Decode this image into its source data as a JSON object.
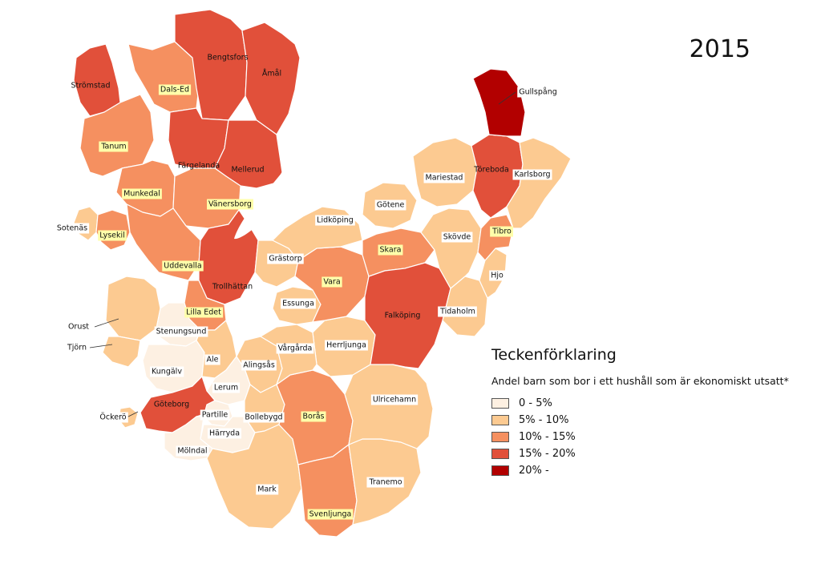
{
  "year": "2015",
  "legend": {
    "title": "Teckenförklaring",
    "subtitle": "Andel barn som bor i ett hushåll som är ekonomiskt utsatt*",
    "classes": [
      {
        "label": "0 - 5%",
        "color": "#fdf0e2"
      },
      {
        "label": "5% - 10%",
        "color": "#fcca91"
      },
      {
        "label": "10% - 15%",
        "color": "#f59060"
      },
      {
        "label": "15% - 20%",
        "color": "#e1503a"
      },
      {
        "label": "20% -",
        "color": "#b20000"
      }
    ]
  },
  "municipalities": [
    {
      "name": "Strömstad",
      "class": 3,
      "label_style": "plain"
    },
    {
      "name": "Dals-Ed",
      "class": 2,
      "label_style": "yellow"
    },
    {
      "name": "Bengtsfors",
      "class": 3,
      "label_style": "plain"
    },
    {
      "name": "Åmål",
      "class": 3,
      "label_style": "plain"
    },
    {
      "name": "Tanum",
      "class": 2,
      "label_style": "yellow"
    },
    {
      "name": "Färgelanda",
      "class": 3,
      "label_style": "plain"
    },
    {
      "name": "Mellerud",
      "class": 3,
      "label_style": "plain"
    },
    {
      "name": "Munkedal",
      "class": 2,
      "label_style": "yellow"
    },
    {
      "name": "Vänersborg",
      "class": 2,
      "label_style": "yellow"
    },
    {
      "name": "Sotenäs",
      "class": 1,
      "label_style": "white"
    },
    {
      "name": "Lysekil",
      "class": 2,
      "label_style": "yellow"
    },
    {
      "name": "Uddevalla",
      "class": 2,
      "label_style": "yellow"
    },
    {
      "name": "Trollhättan",
      "class": 3,
      "label_style": "plain"
    },
    {
      "name": "Lilla Edet",
      "class": 2,
      "label_style": "yellow"
    },
    {
      "name": "Orust",
      "class": 1,
      "label_style": "white"
    },
    {
      "name": "Stenungsund",
      "class": 0,
      "label_style": "white"
    },
    {
      "name": "Tjörn",
      "class": 1,
      "label_style": "white"
    },
    {
      "name": "Kungälv",
      "class": 0,
      "label_style": "white"
    },
    {
      "name": "Ale",
      "class": 1,
      "label_style": "white"
    },
    {
      "name": "Lerum",
      "class": 0,
      "label_style": "white"
    },
    {
      "name": "Göteborg",
      "class": 3,
      "label_style": "plain"
    },
    {
      "name": "Öckerö",
      "class": 1,
      "label_style": "white"
    },
    {
      "name": "Partille",
      "class": 0,
      "label_style": "white"
    },
    {
      "name": "Härryda",
      "class": 0,
      "label_style": "white"
    },
    {
      "name": "Mölndal",
      "class": 0,
      "label_style": "white"
    },
    {
      "name": "Alingsås",
      "class": 1,
      "label_style": "white"
    },
    {
      "name": "Bollebygd",
      "class": 1,
      "label_style": "white"
    },
    {
      "name": "Mark",
      "class": 1,
      "label_style": "white"
    },
    {
      "name": "Borås",
      "class": 2,
      "label_style": "yellow"
    },
    {
      "name": "Svenljunga",
      "class": 2,
      "label_style": "yellow"
    },
    {
      "name": "Tranemo",
      "class": 1,
      "label_style": "white"
    },
    {
      "name": "Ulricehamn",
      "class": 1,
      "label_style": "white"
    },
    {
      "name": "Herrljunga",
      "class": 1,
      "label_style": "white"
    },
    {
      "name": "Vårgårda",
      "class": 1,
      "label_style": "white"
    },
    {
      "name": "Essunga",
      "class": 1,
      "label_style": "white"
    },
    {
      "name": "Grästorp",
      "class": 1,
      "label_style": "white"
    },
    {
      "name": "Vara",
      "class": 2,
      "label_style": "yellow"
    },
    {
      "name": "Lidköping",
      "class": 1,
      "label_style": "white"
    },
    {
      "name": "Götene",
      "class": 1,
      "label_style": "white"
    },
    {
      "name": "Skara",
      "class": 2,
      "label_style": "yellow"
    },
    {
      "name": "Falköping",
      "class": 3,
      "label_style": "plain"
    },
    {
      "name": "Tidaholm",
      "class": 1,
      "label_style": "white"
    },
    {
      "name": "Skövde",
      "class": 1,
      "label_style": "white"
    },
    {
      "name": "Hjo",
      "class": 1,
      "label_style": "white"
    },
    {
      "name": "Tibro",
      "class": 2,
      "label_style": "yellow"
    },
    {
      "name": "Mariestad",
      "class": 1,
      "label_style": "white"
    },
    {
      "name": "Töreboda",
      "class": 3,
      "label_style": "plain"
    },
    {
      "name": "Karlsborg",
      "class": 1,
      "label_style": "white"
    },
    {
      "name": "Gullspång",
      "class": 4,
      "label_style": "white"
    }
  ]
}
